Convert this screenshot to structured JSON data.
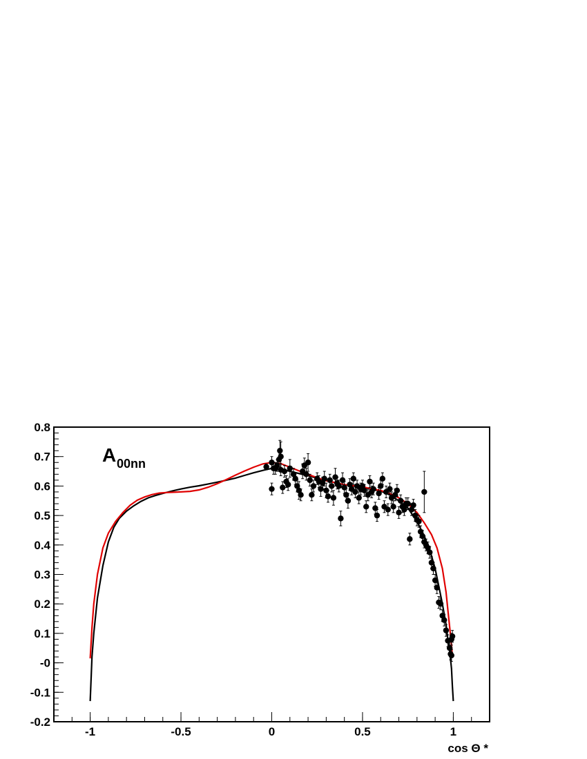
{
  "chart_data": {
    "type": "scatter",
    "title": "",
    "xlabel": "cos Θ *",
    "ylabel": "",
    "annotation": {
      "main": "A",
      "subscript": "00nn"
    },
    "xlim": [
      -1.2,
      1.2
    ],
    "ylim": [
      -0.2,
      0.8
    ],
    "grid": false,
    "x_ticks": [
      -1,
      -0.5,
      0,
      0.5,
      1
    ],
    "x_tick_labels": [
      "-1",
      "-0.5",
      "0",
      "0.5",
      "1"
    ],
    "y_ticks": [
      0.8,
      0.7,
      0.6,
      0.5,
      0.4,
      0.3,
      0.2,
      0.1,
      0.0,
      -0.1,
      -0.2
    ],
    "y_tick_labels": [
      "0.8",
      "0.7",
      "0.6",
      "0.5",
      "0.4",
      "0.3",
      "0.2",
      "0.1",
      "-0",
      "-0.1",
      "-0.2"
    ],
    "colors": {
      "black_curve": "#000000",
      "red_curve": "#e00000",
      "points": "#000000"
    },
    "series": [
      {
        "type": "line",
        "color": "black",
        "x": [
          -1.0,
          -0.99,
          -0.98,
          -0.96,
          -0.93,
          -0.9,
          -0.87,
          -0.84,
          -0.8,
          -0.76,
          -0.72,
          -0.68,
          -0.64,
          -0.6,
          -0.55,
          -0.5,
          -0.45,
          -0.4,
          -0.35,
          -0.3,
          -0.25,
          -0.2,
          -0.15,
          -0.1,
          -0.05,
          0.0,
          0.05,
          0.1,
          0.2,
          0.3,
          0.4,
          0.5,
          0.6,
          0.65,
          0.7,
          0.75,
          0.8,
          0.84,
          0.87,
          0.9,
          0.92,
          0.94,
          0.96,
          0.97,
          0.98,
          0.99,
          0.995,
          1.0
        ],
        "y": [
          -0.13,
          0.02,
          0.1,
          0.22,
          0.33,
          0.41,
          0.46,
          0.49,
          0.515,
          0.533,
          0.548,
          0.56,
          0.568,
          0.575,
          0.583,
          0.59,
          0.596,
          0.601,
          0.607,
          0.613,
          0.62,
          0.627,
          0.636,
          0.645,
          0.653,
          0.66,
          0.657,
          0.65,
          0.635,
          0.618,
          0.605,
          0.595,
          0.583,
          0.57,
          0.55,
          0.525,
          0.48,
          0.43,
          0.385,
          0.32,
          0.26,
          0.2,
          0.13,
          0.08,
          0.04,
          -0.02,
          -0.08,
          -0.13
        ]
      },
      {
        "type": "line",
        "color": "red",
        "x": [
          -1.0,
          -0.99,
          -0.98,
          -0.96,
          -0.93,
          -0.9,
          -0.86,
          -0.82,
          -0.78,
          -0.74,
          -0.7,
          -0.66,
          -0.62,
          -0.58,
          -0.54,
          -0.5,
          -0.45,
          -0.4,
          -0.35,
          -0.3,
          -0.25,
          -0.2,
          -0.15,
          -0.1,
          -0.05,
          0.0,
          0.05,
          0.1,
          0.2,
          0.3,
          0.4,
          0.5,
          0.6,
          0.65,
          0.7,
          0.75,
          0.8,
          0.84,
          0.88,
          0.91,
          0.94,
          0.96,
          0.97,
          0.98,
          0.99,
          0.995
        ],
        "y": [
          0.015,
          0.12,
          0.2,
          0.3,
          0.39,
          0.44,
          0.48,
          0.51,
          0.535,
          0.552,
          0.563,
          0.571,
          0.576,
          0.578,
          0.579,
          0.58,
          0.582,
          0.587,
          0.596,
          0.608,
          0.622,
          0.637,
          0.651,
          0.664,
          0.675,
          0.68,
          0.676,
          0.664,
          0.639,
          0.618,
          0.605,
          0.597,
          0.585,
          0.575,
          0.56,
          0.54,
          0.51,
          0.475,
          0.435,
          0.39,
          0.32,
          0.24,
          0.18,
          0.12,
          0.06,
          0.02
        ]
      },
      {
        "type": "scatter",
        "name": "",
        "color": "black",
        "points": [
          [
            -0.03,
            0.665,
            0.01
          ],
          [
            0.0,
            0.59,
            0.02
          ],
          [
            0.0,
            0.68,
            0.02
          ],
          [
            0.01,
            0.66,
            0.02
          ],
          [
            0.02,
            0.66,
            0.02
          ],
          [
            0.03,
            0.67,
            0.02
          ],
          [
            0.04,
            0.69,
            0.025
          ],
          [
            0.045,
            0.72,
            0.035
          ],
          [
            0.05,
            0.7,
            0.05
          ],
          [
            0.05,
            0.655,
            0.02
          ],
          [
            0.06,
            0.595,
            0.02
          ],
          [
            0.07,
            0.65,
            0.02
          ],
          [
            0.08,
            0.615,
            0.02
          ],
          [
            0.09,
            0.605,
            0.02
          ],
          [
            0.1,
            0.66,
            0.03
          ],
          [
            0.12,
            0.64,
            0.02
          ],
          [
            0.13,
            0.625,
            0.02
          ],
          [
            0.14,
            0.6,
            0.02
          ],
          [
            0.15,
            0.585,
            0.03
          ],
          [
            0.16,
            0.57,
            0.02
          ],
          [
            0.17,
            0.65,
            0.025
          ],
          [
            0.18,
            0.67,
            0.025
          ],
          [
            0.19,
            0.64,
            0.02
          ],
          [
            0.2,
            0.68,
            0.03
          ],
          [
            0.21,
            0.62,
            0.02
          ],
          [
            0.22,
            0.57,
            0.02
          ],
          [
            0.23,
            0.6,
            0.02
          ],
          [
            0.25,
            0.625,
            0.02
          ],
          [
            0.26,
            0.615,
            0.02
          ],
          [
            0.27,
            0.59,
            0.025
          ],
          [
            0.28,
            0.61,
            0.02
          ],
          [
            0.29,
            0.625,
            0.025
          ],
          [
            0.3,
            0.585,
            0.025
          ],
          [
            0.31,
            0.565,
            0.02
          ],
          [
            0.32,
            0.62,
            0.02
          ],
          [
            0.33,
            0.6,
            0.02
          ],
          [
            0.34,
            0.56,
            0.025
          ],
          [
            0.35,
            0.63,
            0.03
          ],
          [
            0.36,
            0.61,
            0.02
          ],
          [
            0.37,
            0.6,
            0.02
          ],
          [
            0.38,
            0.49,
            0.025
          ],
          [
            0.39,
            0.62,
            0.025
          ],
          [
            0.4,
            0.595,
            0.02
          ],
          [
            0.41,
            0.57,
            0.02
          ],
          [
            0.42,
            0.55,
            0.025
          ],
          [
            0.43,
            0.605,
            0.02
          ],
          [
            0.44,
            0.59,
            0.02
          ],
          [
            0.45,
            0.625,
            0.02
          ],
          [
            0.46,
            0.58,
            0.02
          ],
          [
            0.47,
            0.6,
            0.02
          ],
          [
            0.48,
            0.56,
            0.02
          ],
          [
            0.49,
            0.59,
            0.02
          ],
          [
            0.5,
            0.6,
            0.02
          ],
          [
            0.51,
            0.585,
            0.02
          ],
          [
            0.52,
            0.53,
            0.02
          ],
          [
            0.53,
            0.57,
            0.02
          ],
          [
            0.54,
            0.615,
            0.02
          ],
          [
            0.55,
            0.58,
            0.02
          ],
          [
            0.56,
            0.59,
            0.02
          ],
          [
            0.57,
            0.525,
            0.02
          ],
          [
            0.58,
            0.5,
            0.02
          ],
          [
            0.59,
            0.575,
            0.02
          ],
          [
            0.6,
            0.6,
            0.02
          ],
          [
            0.61,
            0.625,
            0.02
          ],
          [
            0.62,
            0.53,
            0.02
          ],
          [
            0.63,
            0.58,
            0.02
          ],
          [
            0.64,
            0.52,
            0.02
          ],
          [
            0.65,
            0.59,
            0.02
          ],
          [
            0.66,
            0.56,
            0.02
          ],
          [
            0.67,
            0.53,
            0.02
          ],
          [
            0.68,
            0.57,
            0.02
          ],
          [
            0.69,
            0.585,
            0.02
          ],
          [
            0.7,
            0.51,
            0.02
          ],
          [
            0.71,
            0.55,
            0.02
          ],
          [
            0.72,
            0.53,
            0.02
          ],
          [
            0.73,
            0.52,
            0.02
          ],
          [
            0.74,
            0.54,
            0.02
          ],
          [
            0.75,
            0.54,
            0.02
          ],
          [
            0.76,
            0.42,
            0.02
          ],
          [
            0.77,
            0.52,
            0.02
          ],
          [
            0.78,
            0.535,
            0.02
          ],
          [
            0.79,
            0.5,
            0.02
          ],
          [
            0.8,
            0.485,
            0.02
          ],
          [
            0.81,
            0.48,
            0.02
          ],
          [
            0.82,
            0.445,
            0.02
          ],
          [
            0.83,
            0.43,
            0.02
          ],
          [
            0.84,
            0.41,
            0.02
          ],
          [
            0.84,
            0.58,
            0.07
          ],
          [
            0.85,
            0.4,
            0.02
          ],
          [
            0.86,
            0.39,
            0.02
          ],
          [
            0.87,
            0.375,
            0.02
          ],
          [
            0.88,
            0.34,
            0.02
          ],
          [
            0.89,
            0.32,
            0.02
          ],
          [
            0.9,
            0.28,
            0.02
          ],
          [
            0.91,
            0.255,
            0.02
          ],
          [
            0.92,
            0.205,
            0.02
          ],
          [
            0.93,
            0.2,
            0.02
          ],
          [
            0.94,
            0.16,
            0.02
          ],
          [
            0.95,
            0.145,
            0.02
          ],
          [
            0.96,
            0.11,
            0.02
          ],
          [
            0.97,
            0.075,
            0.02
          ],
          [
            0.98,
            0.05,
            0.02
          ],
          [
            0.985,
            0.03,
            0.02
          ],
          [
            0.99,
            0.025,
            0.02
          ],
          [
            0.995,
            0.09,
            0.02
          ],
          [
            0.99,
            0.08,
            0.02
          ]
        ]
      }
    ]
  }
}
